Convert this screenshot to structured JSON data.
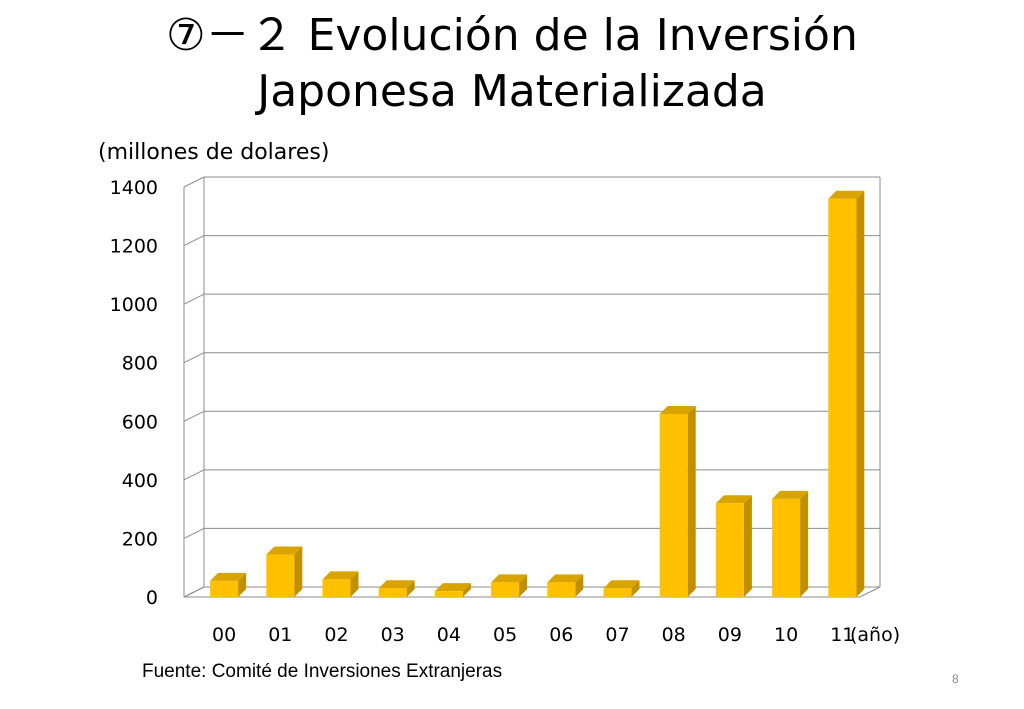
{
  "slide": {
    "title_line1": "⑦－２ Evolución de la Inversión",
    "title_line2": "Japonesa Materializada",
    "source": "Fuente: Comité de Inversiones Extranjeras",
    "page_number": "8"
  },
  "chart_data": {
    "type": "bar",
    "title": "",
    "ylabel": "(millones de dolares)",
    "xlabel": "(año)",
    "categories": [
      "00",
      "01",
      "02",
      "03",
      "04",
      "05",
      "06",
      "07",
      "08",
      "09",
      "10",
      "11"
    ],
    "values": [
      55,
      145,
      60,
      30,
      20,
      50,
      50,
      30,
      625,
      320,
      335,
      1360
    ],
    "ylim": [
      0,
      1400
    ],
    "yticks": [
      0,
      200,
      400,
      600,
      800,
      1000,
      1200,
      1400
    ],
    "grid": true,
    "bar_color": "#FFC000",
    "bar_side_color": "#C09000",
    "bar_top_color": "#D9A400",
    "style": "3d-column"
  }
}
